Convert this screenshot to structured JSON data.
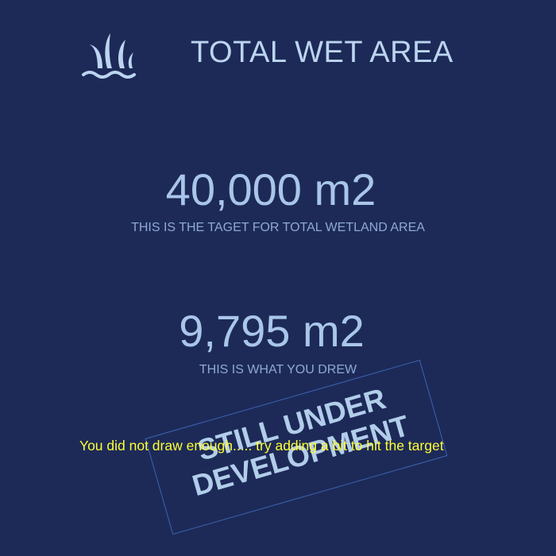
{
  "header": {
    "logo_icon": "water-waves-logo-icon",
    "title": "TOTAL WET AREA"
  },
  "target": {
    "value": "40,000 m2",
    "caption": "THIS IS THE TAGET FOR TOTAL WETLAND AREA"
  },
  "drawn": {
    "value": "9,795 m2",
    "caption": "THIS IS WHAT YOU DREW"
  },
  "stamp": {
    "line1": "STILL UNDER",
    "line2": "DEVELOPMENT"
  },
  "warning": {
    "message": "You did not draw enough..... try adding a bit to hit the target"
  },
  "colors": {
    "background": "#1d2a58",
    "accent": "#bcd5ef",
    "warning": "#ffff33"
  }
}
